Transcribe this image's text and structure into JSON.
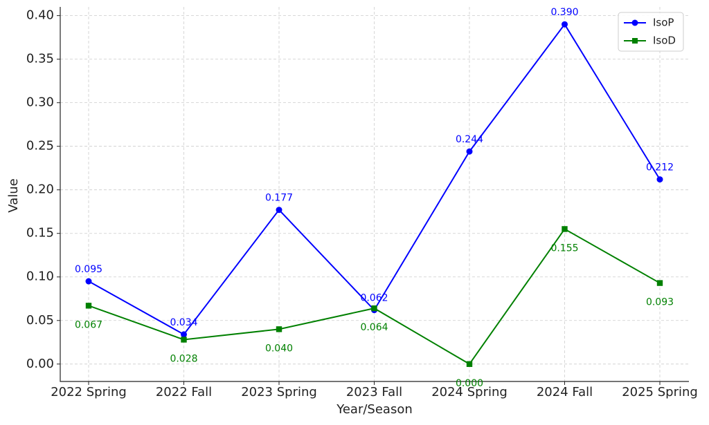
{
  "chart_data": {
    "type": "line",
    "x_label": "Year/Season",
    "y_label": "Value",
    "categories": [
      "2022 Spring",
      "2022 Fall",
      "2023 Spring",
      "2023 Fall",
      "2024 Spring",
      "2024 Fall",
      "2025 Spring"
    ],
    "series": [
      {
        "name": "IsoP",
        "color": "#0000ff",
        "marker": "circle",
        "values": [
          0.095,
          0.034,
          0.177,
          0.062,
          0.244,
          0.39,
          0.212
        ],
        "value_labels": [
          "0.095",
          "0.034",
          "0.177",
          "0.062",
          "0.244",
          "0.390",
          "0.212"
        ]
      },
      {
        "name": "IsoD",
        "color": "#008000",
        "marker": "square",
        "values": [
          0.067,
          0.028,
          0.04,
          0.064,
          0.0,
          0.155,
          0.093
        ],
        "value_labels": [
          "0.067",
          "0.028",
          "0.040",
          "0.064",
          "0.000",
          "0.155",
          "0.093"
        ]
      }
    ],
    "ylim": [
      -0.02,
      0.41
    ],
    "yticks": [
      {
        "value": 0,
        "label": "0.00"
      },
      0.05,
      {
        "value": 0.1,
        "label": "0.10"
      },
      0.15,
      {
        "value": 0.2,
        "label": "0.20"
      },
      0.25,
      {
        "value": 0.3,
        "label": "0.30"
      },
      0.35,
      {
        "value": 0.4,
        "label": "0.40"
      }
    ],
    "grid": true,
    "legend": "upper right"
  }
}
